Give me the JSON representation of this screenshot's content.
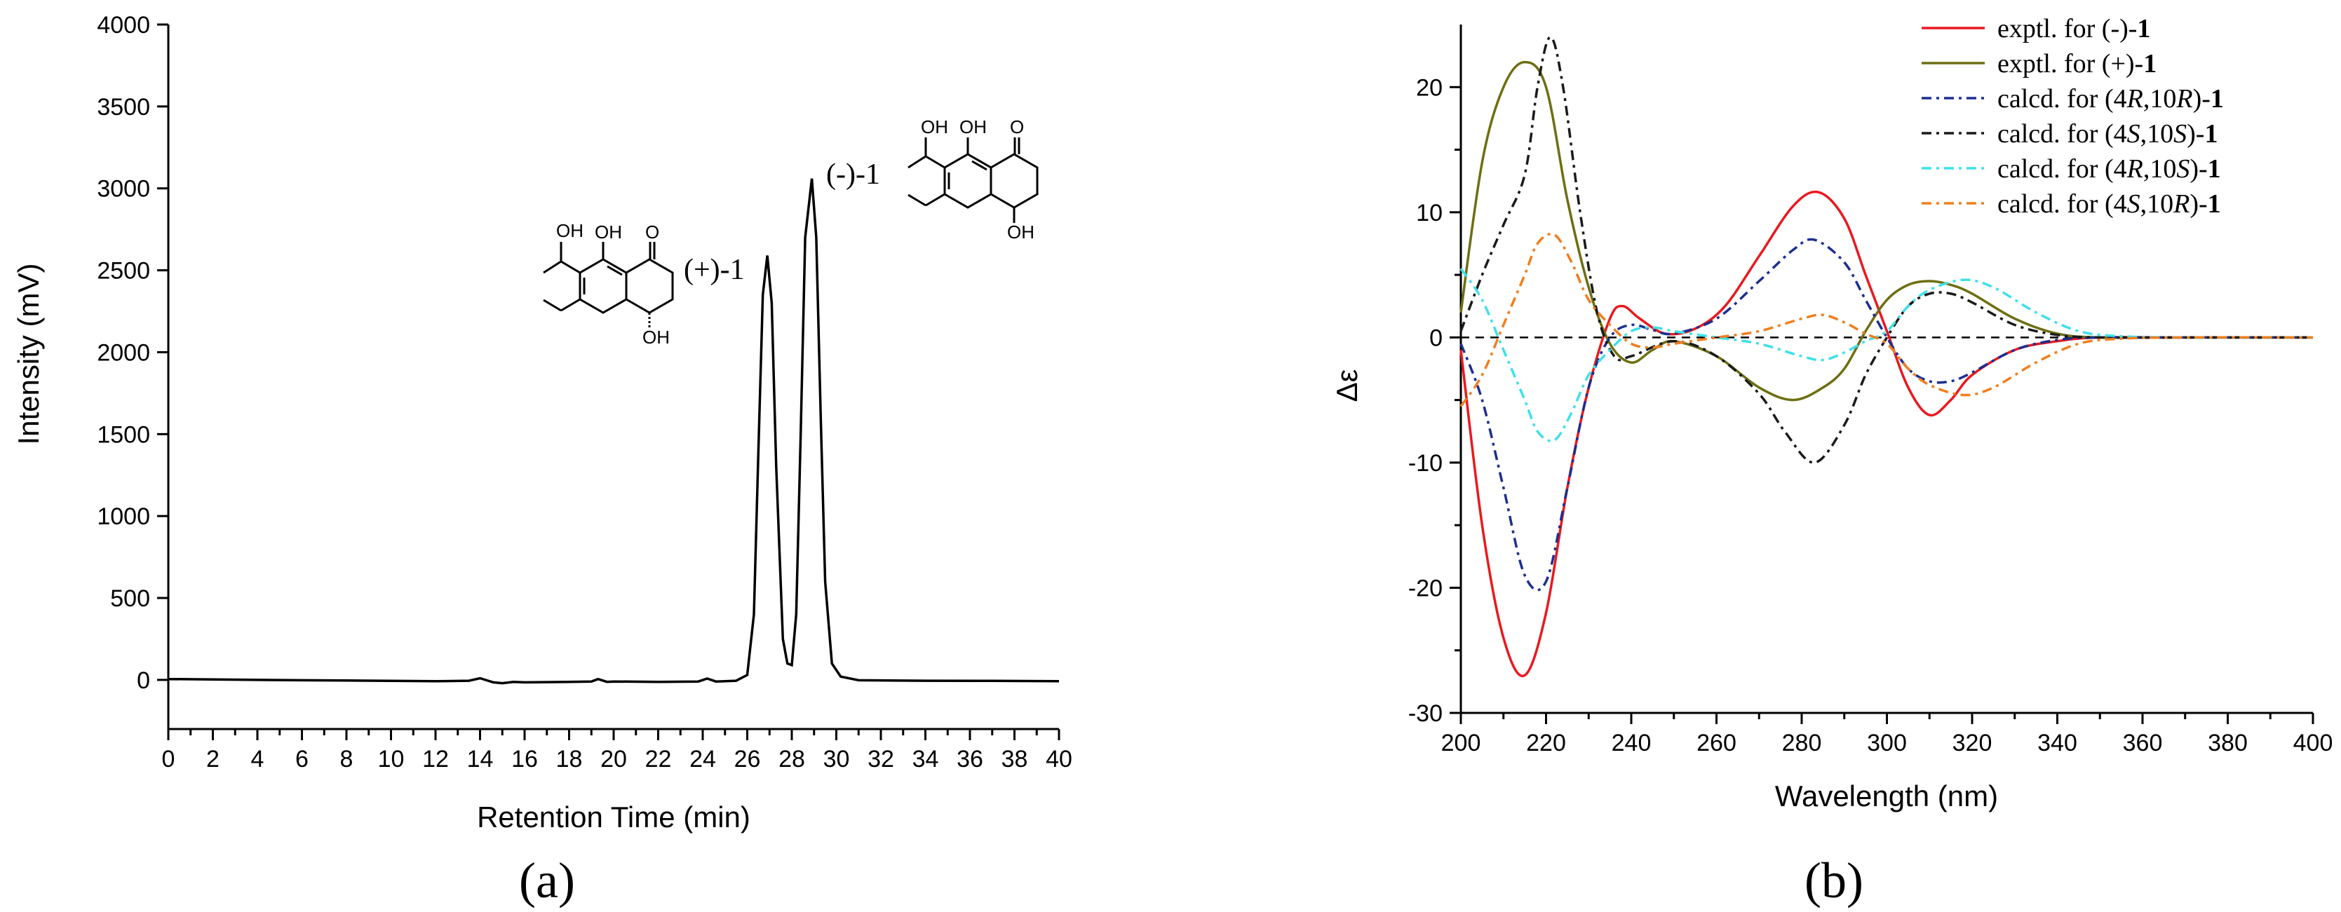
{
  "chart_data": [
    {
      "type": "line",
      "panel_label": "(a)",
      "xlabel": "Retention Time (min)",
      "ylabel": "Intensity (mV)",
      "xlim": [
        0,
        40
      ],
      "ylim": [
        -300,
        4000
      ],
      "xticks": [
        0,
        2,
        4,
        6,
        8,
        10,
        12,
        14,
        16,
        18,
        20,
        22,
        24,
        26,
        28,
        30,
        32,
        34,
        36,
        38,
        40
      ],
      "yticks": [
        0,
        500,
        1000,
        1500,
        2000,
        2500,
        3000,
        3500,
        4000
      ],
      "grid": false,
      "legend": "none",
      "series": [
        {
          "color": "#000000",
          "x": [
            0,
            2,
            4,
            6,
            8,
            10,
            12,
            13.5,
            14,
            14.6,
            15,
            15.5,
            16,
            18,
            19,
            19.3,
            19.7,
            20,
            22,
            23.8,
            24.2,
            24.6,
            25,
            25.5,
            26,
            26.3,
            26.5,
            26.7,
            26.9,
            27.1,
            27.3,
            27.6,
            27.8,
            28,
            28.2,
            28.4,
            28.6,
            28.9,
            29.1,
            29.3,
            29.5,
            29.8,
            30.2,
            31,
            34,
            37,
            40
          ],
          "y": [
            5,
            3,
            0,
            -2,
            -4,
            -6,
            -8,
            -5,
            10,
            -15,
            -20,
            -12,
            -15,
            -12,
            -10,
            5,
            -12,
            -10,
            -12,
            -10,
            8,
            -10,
            -8,
            -5,
            30,
            400,
            1400,
            2350,
            2590,
            2300,
            1300,
            250,
            100,
            90,
            400,
            1500,
            2700,
            3060,
            2700,
            1600,
            600,
            100,
            20,
            -2,
            -5,
            -6,
            -8
          ]
        }
      ],
      "annotations": [
        {
          "text": "(+)-1",
          "x": 26.5,
          "y": 2500
        },
        {
          "text": "(-)-1",
          "x": 28.5,
          "y": 3000
        }
      ]
    },
    {
      "type": "line",
      "panel_label": "(b)",
      "xlabel": "Wavelength (nm)",
      "ylabel": "Δε",
      "xlim": [
        200,
        400
      ],
      "ylim": [
        -30,
        25
      ],
      "xticks": [
        200,
        220,
        240,
        260,
        280,
        300,
        320,
        340,
        360,
        380,
        400
      ],
      "yticks": [
        -30,
        -20,
        -10,
        0,
        10,
        20
      ],
      "grid": false,
      "legend": "top-right",
      "zero_line": "dashed",
      "series": [
        {
          "name": "exptl. for (-)-1",
          "color": "#e8191f",
          "dash": "solid",
          "x": [
            200,
            205,
            210,
            215,
            220,
            225,
            230,
            235,
            238,
            242,
            248,
            255,
            262,
            270,
            278,
            284,
            290,
            295,
            300,
            305,
            310,
            315,
            320,
            330,
            340,
            350,
            370,
            400
          ],
          "y": [
            -1,
            -15,
            -24,
            -27,
            -22,
            -12,
            -4,
            1.5,
            2.5,
            1.5,
            0.3,
            0.7,
            2.5,
            6.5,
            10.5,
            11.6,
            9.5,
            5,
            0.5,
            -4,
            -6.2,
            -5,
            -3,
            -1,
            -0.3,
            0,
            0,
            0
          ]
        },
        {
          "name": "exptl. for (+)-1",
          "color": "#6e6e12",
          "dash": "solid",
          "x": [
            200,
            205,
            210,
            215,
            220,
            225,
            230,
            235,
            240,
            245,
            250,
            260,
            270,
            278,
            285,
            290,
            295,
            300,
            305,
            310,
            315,
            320,
            330,
            340,
            350,
            370,
            400
          ],
          "y": [
            2,
            14,
            20,
            22,
            20,
            11,
            4,
            -0.5,
            -2,
            -1,
            -0.3,
            -1.5,
            -4,
            -5,
            -4,
            -2.5,
            0.5,
            3,
            4.2,
            4.5,
            4.2,
            3.5,
            1.5,
            0.3,
            0,
            0,
            0
          ]
        },
        {
          "name": "calcd. for (4R,10R)-1",
          "color": "#1c2f8f",
          "dash": "6 4 2 4",
          "x": [
            200,
            205,
            210,
            215,
            220,
            225,
            230,
            235,
            240,
            245,
            250,
            260,
            270,
            278,
            283,
            290,
            295,
            300,
            305,
            310,
            315,
            320,
            330,
            340,
            350,
            370,
            400
          ],
          "y": [
            -0.5,
            -5,
            -12,
            -19,
            -19.5,
            -12,
            -4,
            0,
            1,
            0.6,
            0.3,
            1.5,
            4.5,
            7,
            7.8,
            6,
            3,
            0,
            -2.5,
            -3.5,
            -3.5,
            -2.8,
            -1,
            -0.2,
            0,
            0,
            0
          ]
        },
        {
          "name": "calcd. for (4S,10S)-1",
          "color": "#1a1a1a",
          "dash": "6 4 2 4",
          "x": [
            200,
            205,
            210,
            215,
            218,
            221,
            224,
            228,
            232,
            236,
            240,
            250,
            260,
            270,
            276,
            283,
            290,
            295,
            300,
            305,
            310,
            315,
            320,
            330,
            340,
            350,
            370,
            400
          ],
          "y": [
            0.5,
            5,
            9,
            13,
            20,
            24,
            20,
            10,
            2,
            -1.5,
            -1.5,
            -0.3,
            -1.5,
            -4.5,
            -7.5,
            -10,
            -7,
            -3,
            0,
            2.5,
            3.5,
            3.5,
            2.8,
            1,
            0.2,
            0,
            0,
            0
          ]
        },
        {
          "name": "calcd. for (4R,10S)-1",
          "color": "#3fe0e8",
          "dash": "6 4 2 4",
          "x": [
            200,
            205,
            210,
            215,
            218,
            222,
            226,
            230,
            235,
            240,
            245,
            250,
            260,
            270,
            280,
            285,
            290,
            295,
            300,
            305,
            310,
            318,
            325,
            335,
            345,
            355,
            370,
            400
          ],
          "y": [
            5.5,
            3,
            -1,
            -5,
            -7.5,
            -8.2,
            -6,
            -3,
            -1,
            0.5,
            0.8,
            0.5,
            0,
            -0.5,
            -1.5,
            -1.8,
            -1.2,
            -0.3,
            0.5,
            2.5,
            3.8,
            4.6,
            4,
            2,
            0.5,
            0.1,
            0,
            0
          ]
        },
        {
          "name": "calcd. for (4S,10R)-1",
          "color": "#f07e1e",
          "dash": "6 4 2 4",
          "x": [
            200,
            205,
            210,
            215,
            218,
            222,
            226,
            230,
            235,
            240,
            245,
            250,
            260,
            270,
            280,
            285,
            290,
            295,
            300,
            305,
            310,
            318,
            325,
            335,
            345,
            355,
            370,
            400
          ],
          "y": [
            -5.5,
            -3,
            1,
            5,
            7.5,
            8.2,
            6,
            3,
            1,
            -0.5,
            -0.8,
            -0.5,
            0,
            0.5,
            1.5,
            1.8,
            1.2,
            0.3,
            -0.5,
            -2.5,
            -3.8,
            -4.6,
            -4,
            -2,
            -0.5,
            -0.1,
            0,
            0
          ]
        }
      ]
    }
  ],
  "molecule_labels": {
    "oh": "OH",
    "o": "O"
  },
  "legend_parts": [
    {
      "pre": "exptl. for (-)-",
      "it1": "",
      "mid": "",
      "it2": "",
      "post": "",
      "bold": "1"
    },
    {
      "pre": "exptl. for (+)-",
      "it1": "",
      "mid": "",
      "it2": "",
      "post": "",
      "bold": "1"
    },
    {
      "pre": "calcd. for (4",
      "it1": "R",
      "mid": ",10",
      "it2": "R",
      "post": ")-",
      "bold": "1"
    },
    {
      "pre": "calcd. for (4",
      "it1": "S",
      "mid": ",10",
      "it2": "S",
      "post": ")-",
      "bold": "1"
    },
    {
      "pre": "calcd. for (4",
      "it1": "R",
      "mid": ",10",
      "it2": "S",
      "post": ")-",
      "bold": "1"
    },
    {
      "pre": "calcd. for (4",
      "it1": "S",
      "mid": ",10",
      "it2": "R",
      "post": ")-",
      "bold": "1"
    }
  ]
}
